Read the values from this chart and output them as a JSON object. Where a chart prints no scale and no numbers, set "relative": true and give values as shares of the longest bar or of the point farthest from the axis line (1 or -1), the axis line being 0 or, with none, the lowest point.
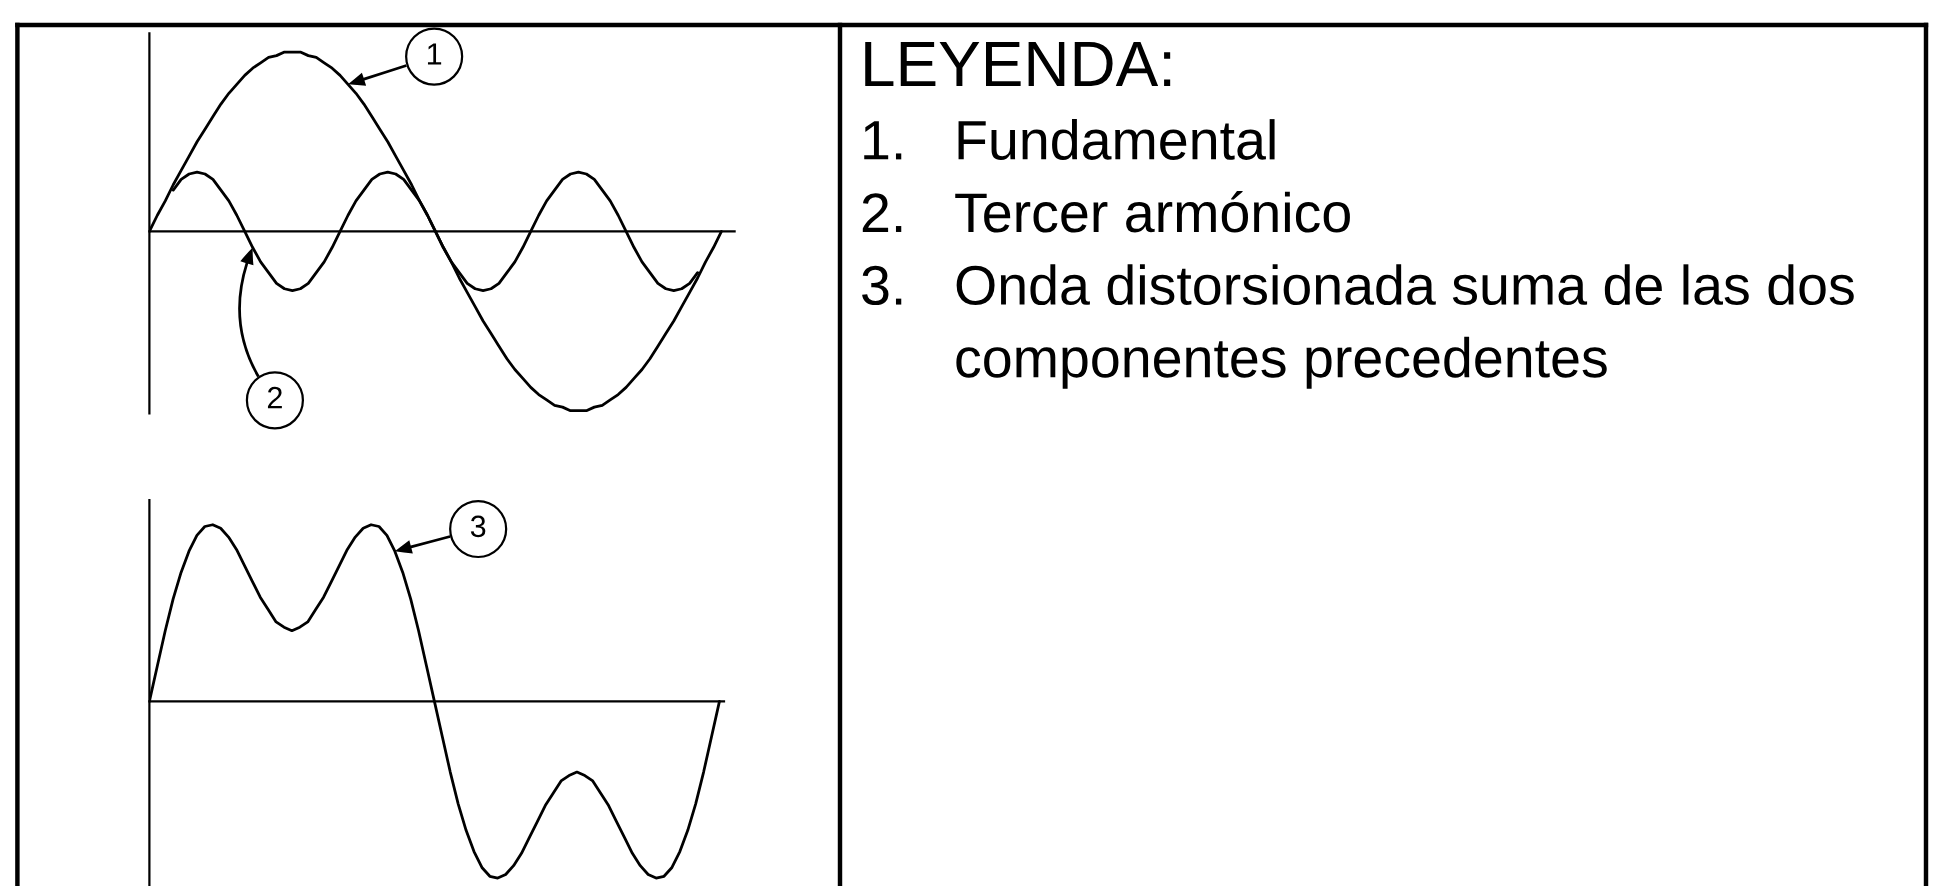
{
  "chart_data": [
    {
      "type": "line",
      "relative": true,
      "categories": [
        null,
        null,
        null,
        null,
        null,
        null,
        null,
        null,
        null,
        null,
        null,
        null,
        null,
        null,
        null,
        null,
        null,
        null,
        null,
        null,
        null,
        null,
        null,
        null,
        null,
        null,
        null,
        null,
        null,
        null,
        null,
        null,
        null,
        null,
        null,
        null,
        null,
        null,
        null,
        null,
        null,
        null,
        null,
        null,
        null,
        null,
        null,
        null,
        null,
        null,
        null,
        null,
        null,
        null,
        null,
        null,
        null,
        null,
        null,
        null,
        null,
        null,
        null,
        null,
        null,
        null,
        null,
        null,
        null,
        null,
        null,
        null,
        null
      ],
      "series": [
        {
          "name": "1",
          "color": "#000000",
          "values": [
            0,
            0.09,
            0.17,
            0.26,
            0.34,
            0.42,
            0.5,
            0.57,
            0.64,
            0.71,
            0.77,
            0.82,
            0.87,
            0.91,
            0.94,
            0.97,
            0.98,
            1.0,
            1.0,
            1.0,
            0.98,
            0.97,
            0.94,
            0.91,
            0.87,
            0.82,
            0.77,
            0.71,
            0.64,
            0.57,
            0.5,
            0.42,
            0.34,
            0.26,
            0.17,
            0.09,
            0,
            -0.09,
            -0.17,
            -0.26,
            -0.34,
            -0.42,
            -0.5,
            -0.57,
            -0.64,
            -0.71,
            -0.77,
            -0.82,
            -0.87,
            -0.91,
            -0.94,
            -0.97,
            -0.98,
            -1.0,
            -1.0,
            -1.0,
            -0.98,
            -0.97,
            -0.94,
            -0.91,
            -0.87,
            -0.82,
            -0.77,
            -0.71,
            -0.64,
            -0.57,
            -0.5,
            -0.42,
            -0.34,
            -0.26,
            -0.17,
            -0.09,
            0
          ]
        },
        {
          "name": "2",
          "color": "#000000",
          "values": [
            null,
            null,
            null,
            0.23,
            0.29,
            0.32,
            0.33,
            0.32,
            0.29,
            0.23,
            0.17,
            0.09,
            0,
            -0.09,
            -0.17,
            -0.23,
            -0.29,
            -0.32,
            -0.33,
            -0.32,
            -0.29,
            -0.23,
            -0.17,
            -0.09,
            0,
            0.09,
            0.17,
            0.23,
            0.29,
            0.32,
            0.33,
            0.32,
            0.29,
            0.23,
            0.17,
            0.09,
            0,
            -0.09,
            -0.17,
            -0.23,
            -0.29,
            -0.32,
            -0.33,
            -0.32,
            -0.29,
            -0.23,
            -0.17,
            -0.09,
            0,
            0.09,
            0.17,
            0.23,
            0.29,
            0.32,
            0.33,
            0.32,
            0.29,
            0.23,
            0.17,
            0.09,
            0,
            -0.09,
            -0.17,
            -0.23,
            -0.29,
            -0.32,
            -0.33,
            -0.32,
            -0.29,
            -0.23,
            null,
            null,
            null
          ]
        }
      ]
    },
    {
      "type": "line",
      "relative": true,
      "categories": [
        null,
        null,
        null,
        null,
        null,
        null,
        null,
        null,
        null,
        null,
        null,
        null,
        null,
        null,
        null,
        null,
        null,
        null,
        null,
        null,
        null,
        null,
        null,
        null,
        null,
        null,
        null,
        null,
        null,
        null,
        null,
        null,
        null,
        null,
        null,
        null,
        null,
        null,
        null,
        null,
        null,
        null,
        null,
        null,
        null,
        null,
        null,
        null,
        null,
        null,
        null,
        null,
        null,
        null,
        null,
        null,
        null,
        null,
        null,
        null,
        null,
        null,
        null,
        null,
        null,
        null,
        null,
        null,
        null,
        null,
        null,
        null,
        null
      ],
      "series": [
        {
          "name": "3",
          "color": "#000000",
          "values": [
            0,
            0.2,
            0.4,
            0.58,
            0.73,
            0.85,
            0.94,
            0.99,
            1.0,
            0.98,
            0.93,
            0.86,
            0.77,
            0.68,
            0.59,
            0.52,
            0.45,
            0.42,
            0.4,
            0.42,
            0.45,
            0.52,
            0.59,
            0.68,
            0.77,
            0.86,
            0.93,
            0.98,
            1.0,
            0.99,
            0.94,
            0.85,
            0.73,
            0.58,
            0.4,
            0.2,
            0,
            -0.2,
            -0.4,
            -0.58,
            -0.73,
            -0.85,
            -0.94,
            -0.99,
            -1.0,
            -0.98,
            -0.93,
            -0.86,
            -0.77,
            -0.68,
            -0.59,
            -0.52,
            -0.45,
            -0.42,
            -0.4,
            -0.42,
            -0.45,
            -0.52,
            -0.59,
            -0.68,
            -0.77,
            -0.86,
            -0.93,
            -0.98,
            -1.0,
            -0.99,
            -0.94,
            -0.85,
            -0.73,
            -0.58,
            -0.4,
            -0.2,
            0
          ]
        }
      ]
    },
    {
      "type": "other",
      "title": "LEYENDA:",
      "annotations": [
        "1. Fundamental",
        "2. Tercer armónico",
        "3. Onda distorsionada suma de las dos componentes precedentes"
      ]
    }
  ]
}
